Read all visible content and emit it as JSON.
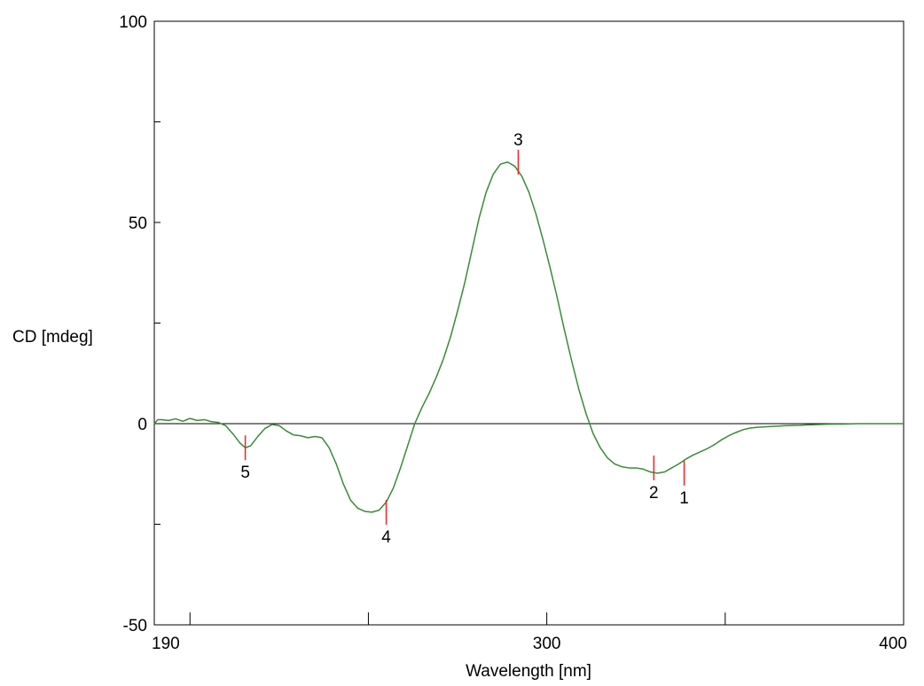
{
  "colors": {
    "curve": "#3a8a3a",
    "peak_marker": "#e8262a",
    "axis": "#000000",
    "zero_line": "#000000"
  },
  "chart_data": {
    "type": "line",
    "title": "",
    "xlabel": "Wavelength [nm]",
    "ylabel": "CD [mdeg]",
    "xlim": [
      190,
      400
    ],
    "ylim": [
      -50,
      100
    ],
    "x_tick_labels": [
      {
        "value": 190,
        "label": "190"
      },
      {
        "value": 300,
        "label": "300"
      },
      {
        "value": 400,
        "label": "400"
      }
    ],
    "x_minor_ticks": [
      200,
      250,
      350
    ],
    "y_tick_labels": [
      {
        "value": -50,
        "label": "-50"
      },
      {
        "value": 0,
        "label": "0"
      },
      {
        "value": 50,
        "label": "50"
      },
      {
        "value": 100,
        "label": "100"
      }
    ],
    "y_minor_ticks": [
      -25,
      25,
      75
    ],
    "zero_line": true,
    "grid": false,
    "series": [
      {
        "x": [
          190,
          191,
          192,
          194,
          196,
          198,
          200,
          202,
          204,
          206,
          208,
          210,
          212,
          214,
          215.5,
          217,
          219,
          221,
          223,
          225,
          227,
          229,
          231,
          233,
          235,
          237,
          239,
          241,
          243,
          245,
          247,
          249,
          251,
          253,
          255,
          257,
          259,
          261,
          263,
          265,
          267,
          269,
          271,
          273,
          275,
          277,
          279,
          281,
          283,
          285,
          287,
          289,
          291,
          293,
          295,
          297,
          299,
          301,
          303,
          305,
          307,
          309,
          311,
          313,
          315,
          317,
          319,
          321,
          323,
          325,
          327,
          329,
          331,
          333,
          335,
          337,
          339,
          341,
          343,
          345,
          347,
          349,
          351,
          353,
          355,
          357,
          359,
          361,
          363,
          365,
          367,
          369,
          371,
          373,
          375,
          377,
          379,
          381,
          383,
          385,
          387,
          389,
          391,
          393,
          395,
          397,
          399,
          400
        ],
        "y": [
          0,
          1,
          1,
          0.8,
          1.2,
          0.6,
          1.3,
          0.8,
          1.0,
          0.5,
          0.3,
          -0.5,
          -2.5,
          -4.8,
          -6.0,
          -5.5,
          -3.2,
          -1.2,
          -0.2,
          -0.5,
          -1.8,
          -2.8,
          -3.0,
          -3.5,
          -3.2,
          -3.5,
          -6.0,
          -10.0,
          -15.0,
          -19.0,
          -21.0,
          -21.8,
          -22.0,
          -21.5,
          -19.5,
          -16.0,
          -11.0,
          -5.5,
          0,
          4.0,
          7.5,
          11.5,
          16.0,
          21.5,
          28.0,
          35.0,
          43.0,
          51.0,
          57.5,
          62.0,
          64.5,
          65.0,
          64.0,
          61.5,
          57.5,
          52.0,
          45.5,
          38.5,
          31.0,
          23.0,
          15.5,
          8.5,
          2.5,
          -2.5,
          -6.0,
          -8.5,
          -10.0,
          -10.7,
          -11.0,
          -11.0,
          -11.3,
          -12.0,
          -12.3,
          -12.0,
          -11.0,
          -10.0,
          -8.8,
          -7.8,
          -7.0,
          -6.2,
          -5.2,
          -4.0,
          -3.0,
          -2.2,
          -1.5,
          -1.1,
          -0.9,
          -0.8,
          -0.7,
          -0.6,
          -0.5,
          -0.45,
          -0.4,
          -0.3,
          -0.25,
          -0.2,
          -0.15,
          -0.12,
          -0.1,
          -0.05,
          0,
          0,
          0,
          0,
          0,
          0,
          0,
          0
        ]
      }
    ],
    "annotations": [
      {
        "label": "1",
        "x": 338.5,
        "y": -12.3,
        "label_position": "below"
      },
      {
        "label": "2",
        "x": 330,
        "y": -11.0,
        "label_position": "below"
      },
      {
        "label": "3",
        "x": 292,
        "y": 65.0,
        "label_position": "above"
      },
      {
        "label": "4",
        "x": 255,
        "y": -22.0,
        "label_position": "below"
      },
      {
        "label": "5",
        "x": 215.5,
        "y": -6.0,
        "label_position": "below"
      }
    ]
  }
}
